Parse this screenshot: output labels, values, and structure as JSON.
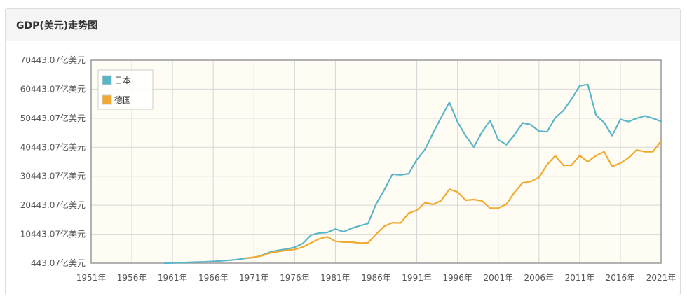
{
  "panel": {
    "title": "GDP(美元)走势图"
  },
  "chart_data": {
    "type": "line",
    "x": [
      1951,
      1952,
      1953,
      1954,
      1955,
      1956,
      1957,
      1958,
      1959,
      1960,
      1961,
      1962,
      1963,
      1964,
      1965,
      1966,
      1967,
      1968,
      1969,
      1970,
      1971,
      1972,
      1973,
      1974,
      1975,
      1976,
      1977,
      1978,
      1979,
      1980,
      1981,
      1982,
      1983,
      1984,
      1985,
      1986,
      1987,
      1988,
      1989,
      1990,
      1991,
      1992,
      1993,
      1994,
      1995,
      1996,
      1997,
      1998,
      1999,
      2000,
      2001,
      2002,
      2003,
      2004,
      2005,
      2006,
      2007,
      2008,
      2009,
      2010,
      2011,
      2012,
      2013,
      2014,
      2015,
      2016,
      2017,
      2018,
      2019,
      2020,
      2021
    ],
    "xticks": [
      1951,
      1956,
      1961,
      1966,
      1971,
      1976,
      1981,
      1986,
      1991,
      1996,
      2001,
      2006,
      2011,
      2016,
      2021
    ],
    "xtick_suffix": "年",
    "ylim": [
      443.07,
      70443.07
    ],
    "yticks": [
      443.07,
      10443.07,
      20443.07,
      30443.07,
      40443.07,
      50443.07,
      60443.07,
      70443.07
    ],
    "ytick_suffix": "亿美元",
    "legend_position": "top-left",
    "grid": true,
    "series": [
      {
        "name": "日本",
        "color": "#5ab5c8",
        "values": [
          null,
          null,
          null,
          null,
          null,
          null,
          null,
          null,
          null,
          443,
          535,
          609,
          711,
          820,
          909,
          1052,
          1237,
          1467,
          1723,
          2130,
          2404,
          3181,
          4289,
          4874,
          5303,
          5928,
          7229,
          10139,
          10840,
          11049,
          12222,
          11282,
          12497,
          13351,
          14138,
          20868,
          25661,
          31132,
          30916,
          31327,
          36195,
          39654,
          45384,
          50779,
          55910,
          49228,
          44393,
          40522,
          45655,
          49681,
          43036,
          41310,
          44731,
          48841,
          48215,
          46018,
          45801,
          50567,
          53062,
          57003,
          61575,
          62032,
          51557,
          48966,
          44447,
          50036,
          49307,
          50400,
          51230,
          50400,
          49378
        ]
      },
      {
        "name": "德国",
        "color": "#f0aa32",
        "values": [
          null,
          null,
          null,
          null,
          null,
          null,
          null,
          null,
          null,
          null,
          null,
          null,
          null,
          null,
          null,
          null,
          null,
          null,
          null,
          2161,
          2495,
          2995,
          3985,
          4458,
          4887,
          5193,
          5999,
          7409,
          8820,
          9566,
          8002,
          7714,
          7707,
          7335,
          7432,
          10457,
          13173,
          14418,
          14299,
          17718,
          18714,
          21329,
          20719,
          22055,
          25950,
          25045,
          22161,
          22415,
          21952,
          19434,
          19437,
          20803,
          24893,
          28186,
          28639,
          30038,
          34407,
          37524,
          34188,
          34235,
          37583,
          35458,
          37527,
          38897,
          33814,
          34962,
          36801,
          39524,
          38885,
          38892,
          42598
        ]
      }
    ]
  }
}
